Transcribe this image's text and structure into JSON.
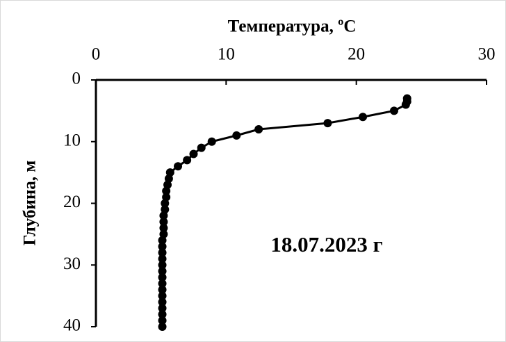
{
  "chart_data": {
    "type": "line",
    "title": "Температура, ºC",
    "y_label": "Глубина, м",
    "annotation": "18.07.2023 г",
    "x": [
      23.9,
      23.9,
      23.8,
      22.9,
      20.5,
      17.8,
      12.5,
      10.8,
      8.9,
      8.1,
      7.5,
      7.0,
      6.3,
      5.7,
      5.6,
      5.5,
      5.4,
      5.4,
      5.3,
      5.3,
      5.2,
      5.2,
      5.2,
      5.2,
      5.1,
      5.1,
      5.1,
      5.1,
      5.1,
      5.1,
      5.1,
      5.1,
      5.1,
      5.1,
      5.1,
      5.1,
      5.1,
      5.1,
      5.1
    ],
    "values": [
      3,
      3.5,
      4,
      5,
      6,
      7,
      8,
      9,
      10,
      11,
      12,
      13,
      14,
      15,
      16,
      17,
      18,
      19,
      20,
      21,
      22,
      23,
      24,
      25,
      26,
      27,
      28,
      29,
      30,
      31,
      32,
      33,
      34,
      35,
      36,
      37,
      38,
      39,
      40
    ],
    "color": "#000000",
    "xlim": [
      0,
      30
    ],
    "xticks": [
      0,
      10,
      20,
      30
    ],
    "ylim": [
      0,
      40
    ],
    "yticks": [
      0,
      10,
      20,
      30,
      40
    ],
    "y_inverted": true,
    "x_axis_position": "top"
  }
}
